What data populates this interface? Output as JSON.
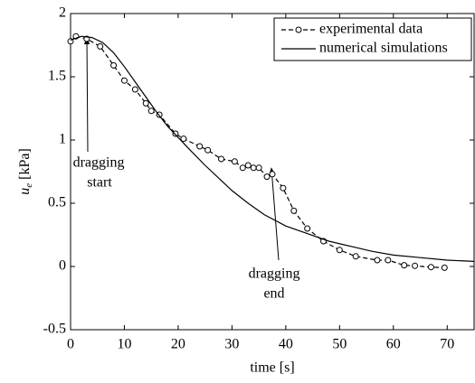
{
  "chart_data": {
    "type": "line",
    "xlabel": "time [s]",
    "ylabel": {
      "symbol": "u",
      "subscript": "e",
      "unit": "[kPa]"
    },
    "xlim": [
      0,
      75
    ],
    "xticks": [
      0,
      10,
      20,
      30,
      40,
      50,
      60,
      70
    ],
    "ylim": [
      -0.5,
      2
    ],
    "yticks": [
      -0.5,
      0,
      0.5,
      1,
      1.5,
      2
    ],
    "grid": false,
    "legend": "upper right",
    "series": [
      {
        "name": "experimental data",
        "color": "#000000",
        "dash": true,
        "marker": "circle",
        "x": [
          0,
          1,
          3,
          5.5,
          8,
          10,
          12,
          14,
          15,
          16.5,
          19.5,
          21,
          24,
          25.5,
          28,
          30.5,
          32,
          33,
          34,
          35,
          36.5,
          37.5,
          39.5,
          41.5,
          44,
          47,
          50,
          53,
          57,
          59,
          62,
          64,
          67,
          69.5
        ],
        "values": [
          1.78,
          1.82,
          1.8,
          1.74,
          1.59,
          1.47,
          1.4,
          1.29,
          1.23,
          1.2,
          1.05,
          1.01,
          0.95,
          0.92,
          0.85,
          0.83,
          0.78,
          0.8,
          0.78,
          0.78,
          0.71,
          0.73,
          0.62,
          0.44,
          0.3,
          0.2,
          0.13,
          0.08,
          0.05,
          0.05,
          0.01,
          0.005,
          -0.005,
          -0.01
        ]
      },
      {
        "name": "numerical simulations",
        "color": "#000000",
        "dash": false,
        "marker": "none",
        "x": [
          0,
          2,
          4,
          6,
          8,
          10,
          12,
          14,
          16,
          18,
          20,
          22,
          25,
          28,
          30,
          33,
          36,
          40,
          44,
          48,
          52,
          56,
          60,
          65,
          70,
          75
        ],
        "values": [
          1.79,
          1.82,
          1.81,
          1.77,
          1.69,
          1.58,
          1.46,
          1.34,
          1.22,
          1.11,
          1.02,
          0.93,
          0.8,
          0.68,
          0.6,
          0.5,
          0.41,
          0.32,
          0.26,
          0.2,
          0.16,
          0.12,
          0.09,
          0.07,
          0.05,
          0.04
        ]
      }
    ],
    "annotations": [
      {
        "lines": [
          "dragging",
          "start"
        ]
      },
      {
        "lines": [
          "dragging",
          "end"
        ]
      }
    ]
  }
}
